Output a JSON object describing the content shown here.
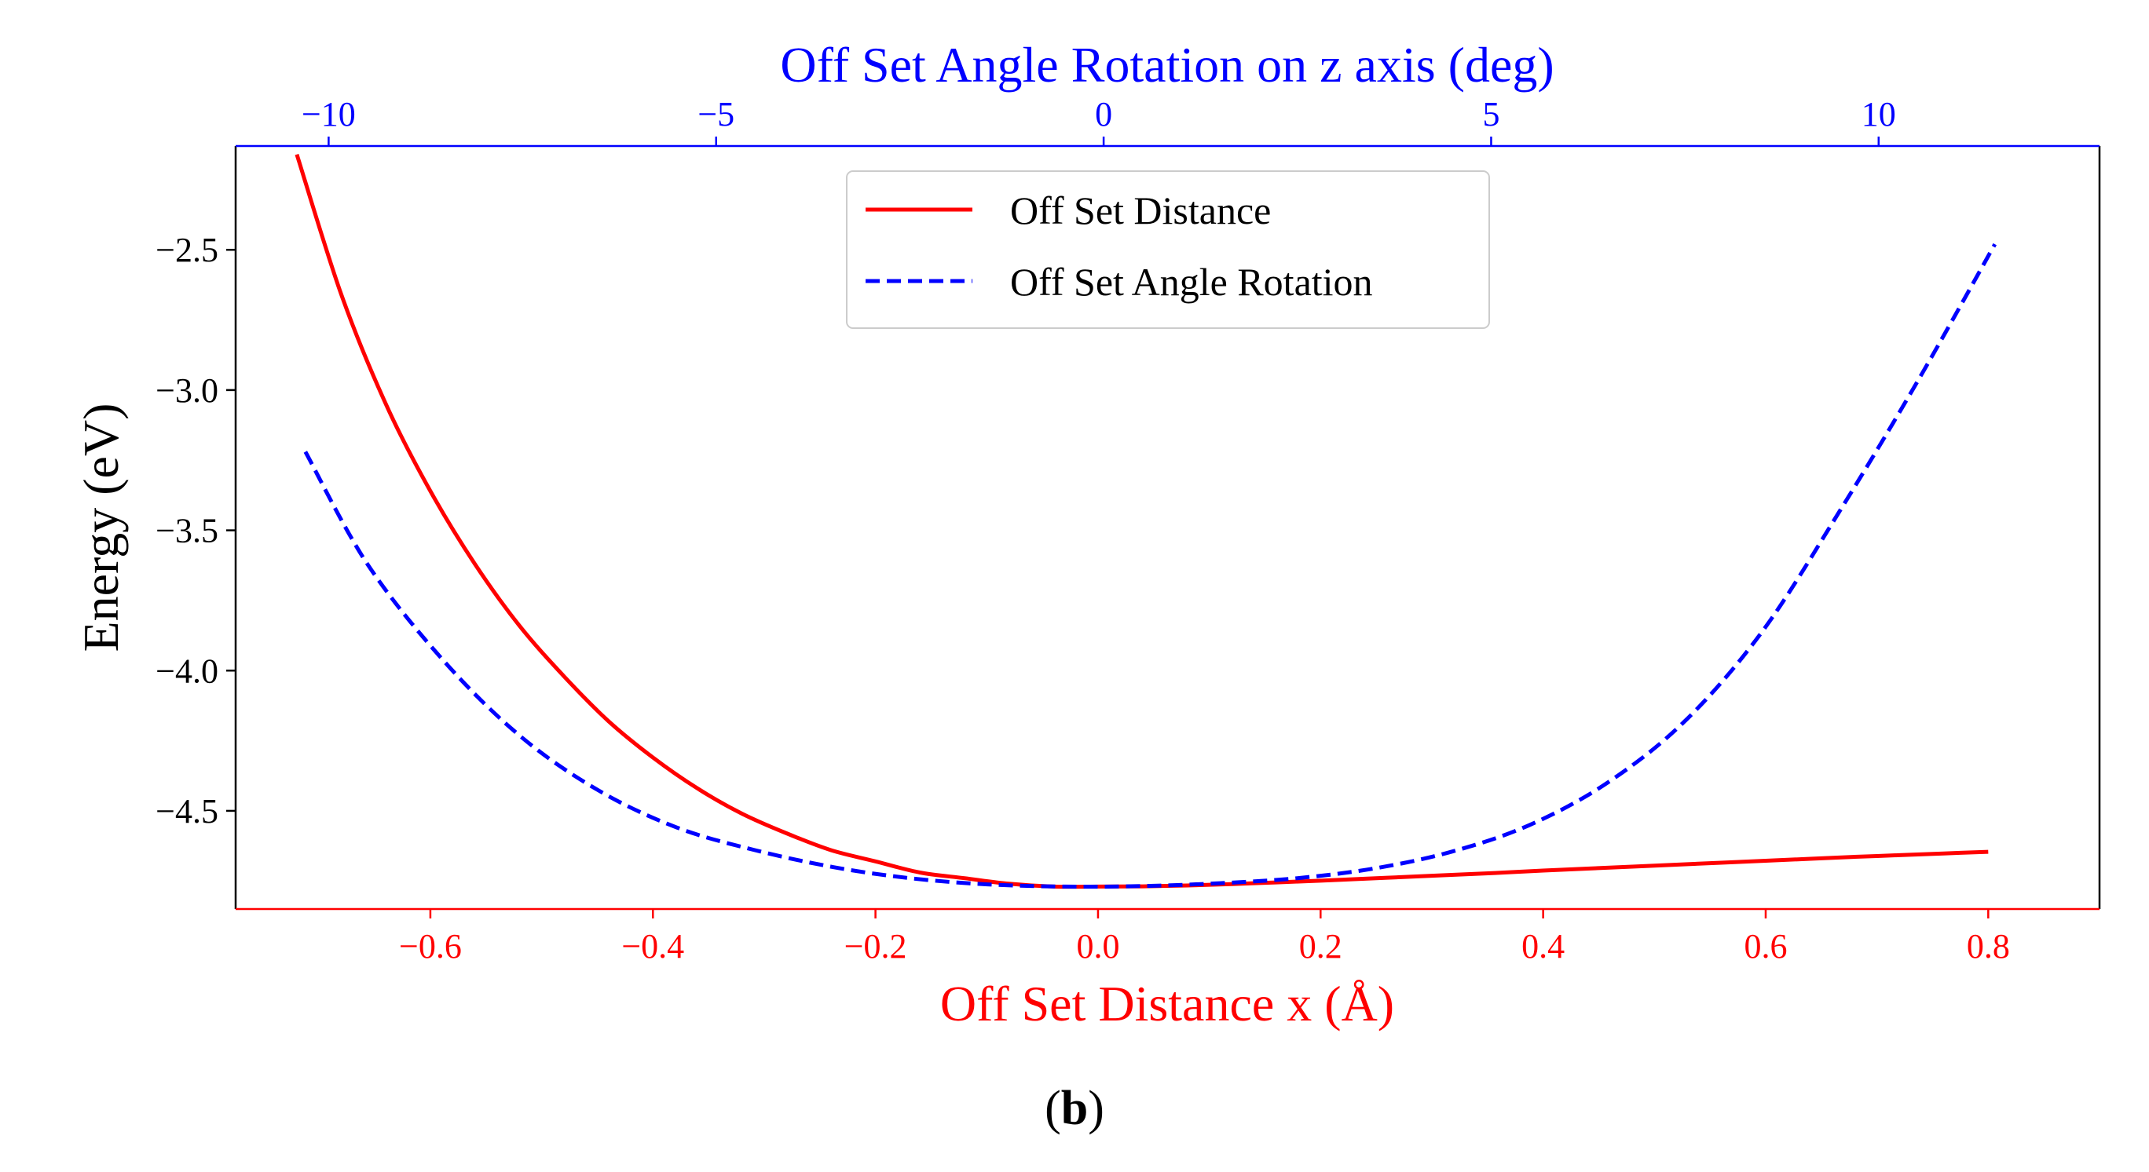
{
  "chart_data": {
    "type": "line",
    "ylabel": "Energy (eV)",
    "bottom_axis": {
      "label": "Off Set Distance x (Å)",
      "range": [
        -0.775,
        0.9
      ],
      "ticks": [
        -0.6,
        -0.4,
        -0.2,
        0.0,
        0.2,
        0.4,
        0.6,
        0.8
      ],
      "tick_labels": [
        "−0.6",
        "−0.4",
        "−0.2",
        "0.0",
        "0.2",
        "0.4",
        "0.6",
        "0.8"
      ],
      "color": "#ff0000"
    },
    "top_axis": {
      "label": "Off Set Angle Rotation on z axis (deg)",
      "range": [
        -11.2,
        12.85
      ],
      "ticks": [
        -10,
        -5,
        0,
        5,
        10
      ],
      "tick_labels": [
        "−10",
        "−5",
        "0",
        "5",
        "10"
      ],
      "color": "#0000ff"
    },
    "y_axis": {
      "range": [
        -4.85,
        -2.13
      ],
      "ticks": [
        -4.5,
        -4.0,
        -3.5,
        -3.0,
        -2.5
      ],
      "tick_labels": [
        "−4.5",
        "−4.0",
        "−3.5",
        "−3.0",
        "−2.5"
      ]
    },
    "series": [
      {
        "name": "Off Set Distance",
        "axis": "bottom",
        "color": "#ff0000",
        "style": "solid",
        "x": [
          -0.72,
          -0.68,
          -0.64,
          -0.6,
          -0.56,
          -0.52,
          -0.48,
          -0.44,
          -0.4,
          -0.36,
          -0.32,
          -0.28,
          -0.24,
          -0.2,
          -0.16,
          -0.12,
          -0.08,
          -0.04,
          0.0,
          0.04,
          0.08,
          0.12,
          0.16,
          0.2,
          0.24,
          0.28,
          0.32,
          0.36,
          0.4,
          0.44,
          0.48,
          0.52,
          0.56,
          0.6,
          0.64,
          0.68,
          0.72,
          0.76,
          0.8
        ],
        "y": [
          -2.16,
          -2.66,
          -3.05,
          -3.36,
          -3.62,
          -3.84,
          -4.02,
          -4.18,
          -4.31,
          -4.42,
          -4.51,
          -4.58,
          -4.64,
          -4.68,
          -4.72,
          -4.74,
          -4.76,
          -4.77,
          -4.77,
          -4.769,
          -4.766,
          -4.761,
          -4.755,
          -4.749,
          -4.742,
          -4.735,
          -4.728,
          -4.721,
          -4.713,
          -4.706,
          -4.699,
          -4.692,
          -4.685,
          -4.678,
          -4.671,
          -4.664,
          -4.658,
          -4.652,
          -4.646
        ]
      },
      {
        "name": "Off Set Angle Rotation",
        "axis": "top",
        "color": "#0000ff",
        "style": "dashed",
        "x": [
          -10.3,
          -9.5,
          -8.5,
          -7.5,
          -6.5,
          -5.5,
          -4.5,
          -3.5,
          -2.5,
          -1.5,
          -0.5,
          0.5,
          1.5,
          2.5,
          3.5,
          4.5,
          5.5,
          6.5,
          7.5,
          8.5,
          9.5,
          10.5,
          11.5
        ],
        "y": [
          -3.22,
          -3.62,
          -3.97,
          -4.24,
          -4.43,
          -4.56,
          -4.64,
          -4.7,
          -4.74,
          -4.762,
          -4.77,
          -4.768,
          -4.758,
          -4.74,
          -4.705,
          -4.645,
          -4.55,
          -4.4,
          -4.18,
          -3.86,
          -3.43,
          -2.97,
          -2.48
        ]
      }
    ],
    "legend": {
      "position": "upper-center",
      "entries": [
        "Off Set Distance",
        "Off Set Angle Rotation"
      ]
    },
    "grid": false
  },
  "caption": {
    "open": "(",
    "letter": "b",
    "close": ")"
  }
}
